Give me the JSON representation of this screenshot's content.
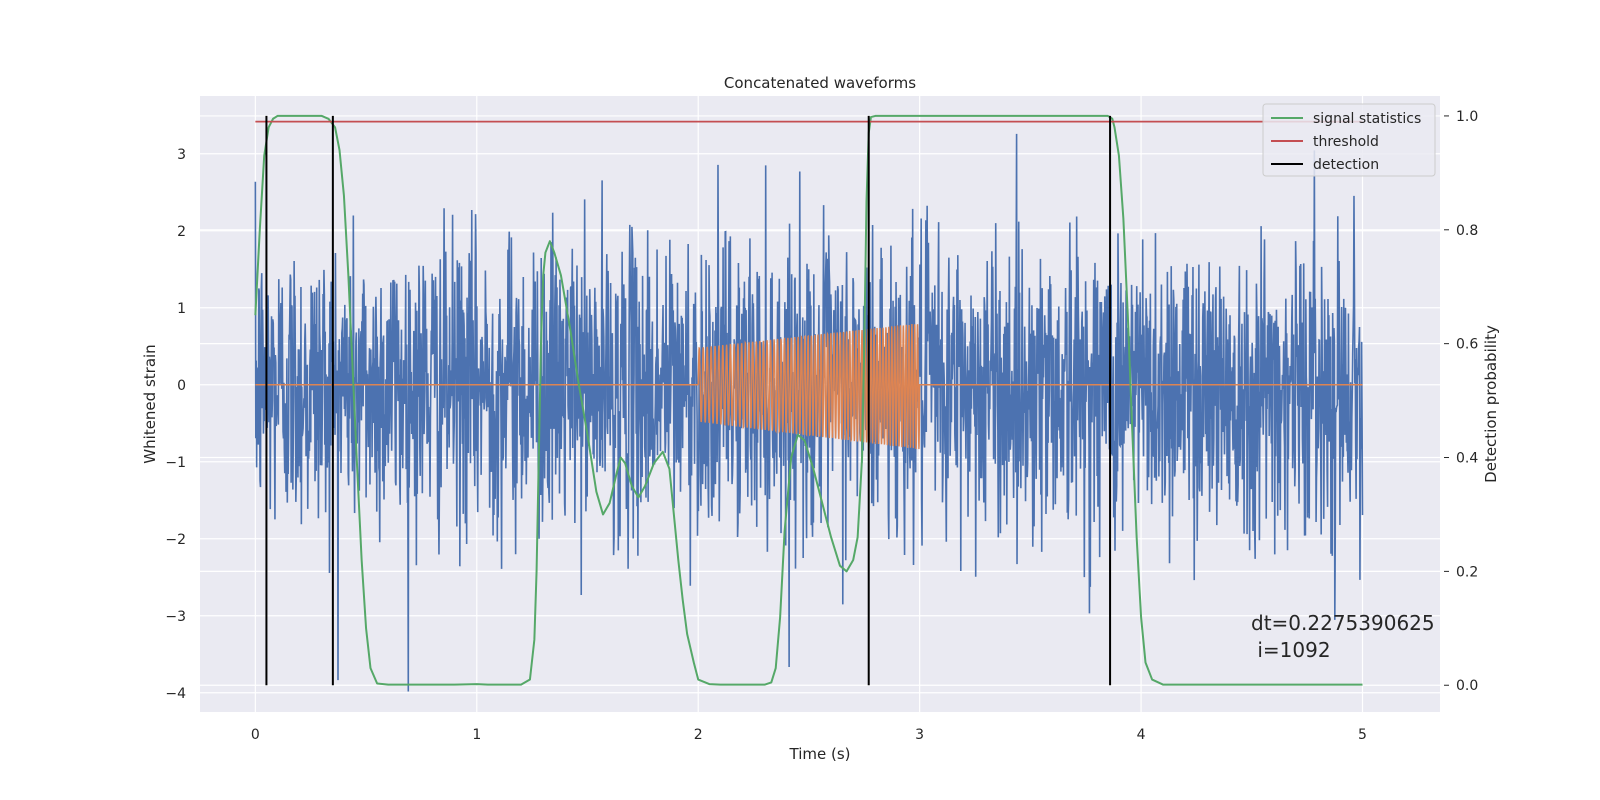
{
  "chart_data": {
    "type": "line",
    "title": "Concatenated waveforms",
    "xlabel": "Time (s)",
    "ylabel": "Whitened strain",
    "ylabel_right": "Detection probability",
    "xlim": [
      -0.25,
      5.35
    ],
    "ylim": [
      -4.25,
      3.75
    ],
    "ylim_right": [
      -0.047,
      1.035
    ],
    "x_ticks": [
      0,
      1,
      2,
      3,
      4,
      5
    ],
    "y_ticks": [
      -4,
      -3,
      -2,
      -1,
      0,
      1,
      2,
      3
    ],
    "y_ticks_right": [
      0.0,
      0.2,
      0.4,
      0.6,
      0.8,
      1.0
    ],
    "y_tick_labels_right": [
      "0.0",
      "0.2",
      "0.4",
      "0.6",
      "0.8",
      "1.0"
    ],
    "grid": true,
    "legend_position": "top-right",
    "background_color": "#eaeaf2",
    "series": [
      {
        "name": "",
        "role": "whitened-strain-noise",
        "color": "#4c72b0",
        "axis": "left",
        "description_values": {
          "x_start": 0.0,
          "x_end": 5.0,
          "approx_amplitude_range": [
            -4.0,
            3.5
          ]
        }
      },
      {
        "name": "",
        "role": "injected-chirp",
        "color": "#dd8452",
        "axis": "left",
        "x_start": 2.0,
        "x_end": 3.0,
        "amplitude_start": 0.48,
        "amplitude_end": 0.82,
        "drift_start": 0.0,
        "drift_end": -0.02
      },
      {
        "name": "signal statistics",
        "color": "#55a868",
        "axis": "right",
        "x": [
          0.0,
          0.02,
          0.04,
          0.06,
          0.08,
          0.1,
          0.15,
          0.2,
          0.25,
          0.3,
          0.33,
          0.36,
          0.38,
          0.4,
          0.42,
          0.44,
          0.46,
          0.48,
          0.5,
          0.52,
          0.55,
          0.6,
          0.7,
          0.8,
          0.9,
          1.0,
          1.05,
          1.1,
          1.15,
          1.2,
          1.24,
          1.26,
          1.27,
          1.28,
          1.29,
          1.3,
          1.31,
          1.32,
          1.33,
          1.35,
          1.38,
          1.42,
          1.46,
          1.5,
          1.54,
          1.57,
          1.6,
          1.63,
          1.65,
          1.67,
          1.7,
          1.73,
          1.76,
          1.8,
          1.84,
          1.87,
          1.89,
          1.91,
          1.93,
          1.95,
          1.98,
          2.0,
          2.05,
          2.1,
          2.2,
          2.3,
          2.33,
          2.35,
          2.37,
          2.39,
          2.42,
          2.45,
          2.48,
          2.52,
          2.56,
          2.6,
          2.64,
          2.67,
          2.7,
          2.72,
          2.74,
          2.75,
          2.76,
          2.77,
          2.78,
          2.8,
          2.9,
          3.0,
          3.2,
          3.5,
          3.8,
          3.85,
          3.87,
          3.88,
          3.9,
          3.92,
          3.94,
          3.96,
          3.98,
          4.0,
          4.02,
          4.05,
          4.1,
          4.3,
          4.6,
          5.0
        ],
        "values": [
          0.65,
          0.8,
          0.93,
          0.98,
          0.995,
          1.0,
          1.0,
          1.0,
          1.0,
          1.0,
          0.995,
          0.98,
          0.94,
          0.86,
          0.72,
          0.55,
          0.38,
          0.22,
          0.1,
          0.03,
          0.003,
          0.001,
          0.001,
          0.001,
          0.001,
          0.002,
          0.001,
          0.001,
          0.001,
          0.001,
          0.01,
          0.08,
          0.2,
          0.4,
          0.6,
          0.72,
          0.76,
          0.77,
          0.78,
          0.76,
          0.72,
          0.63,
          0.53,
          0.44,
          0.34,
          0.3,
          0.32,
          0.37,
          0.4,
          0.39,
          0.35,
          0.33,
          0.35,
          0.39,
          0.41,
          0.38,
          0.3,
          0.22,
          0.15,
          0.09,
          0.04,
          0.01,
          0.002,
          0.001,
          0.001,
          0.001,
          0.005,
          0.03,
          0.12,
          0.27,
          0.4,
          0.44,
          0.43,
          0.38,
          0.32,
          0.26,
          0.21,
          0.2,
          0.22,
          0.26,
          0.4,
          0.6,
          0.85,
          0.97,
          0.998,
          1.0,
          1.0,
          1.0,
          1.0,
          1.0,
          1.0,
          1.0,
          0.995,
          0.98,
          0.93,
          0.82,
          0.65,
          0.45,
          0.26,
          0.12,
          0.04,
          0.01,
          0.001,
          0.001,
          0.001,
          0.001
        ]
      },
      {
        "name": "threshold",
        "color": "#c44e52",
        "axis": "right",
        "x": [
          0.0,
          5.0
        ],
        "values": [
          0.99,
          0.99
        ]
      },
      {
        "name": "detection",
        "color": "#000000",
        "axis": "right",
        "type": "vertical-lines",
        "x": [
          0.05,
          0.35,
          2.77,
          3.86
        ],
        "range": [
          0.0,
          1.0
        ]
      }
    ],
    "annotation": {
      "line1": "dt=0.2275390625",
      "line2": " i=1092",
      "x": 4.5,
      "y": -3.05
    }
  }
}
